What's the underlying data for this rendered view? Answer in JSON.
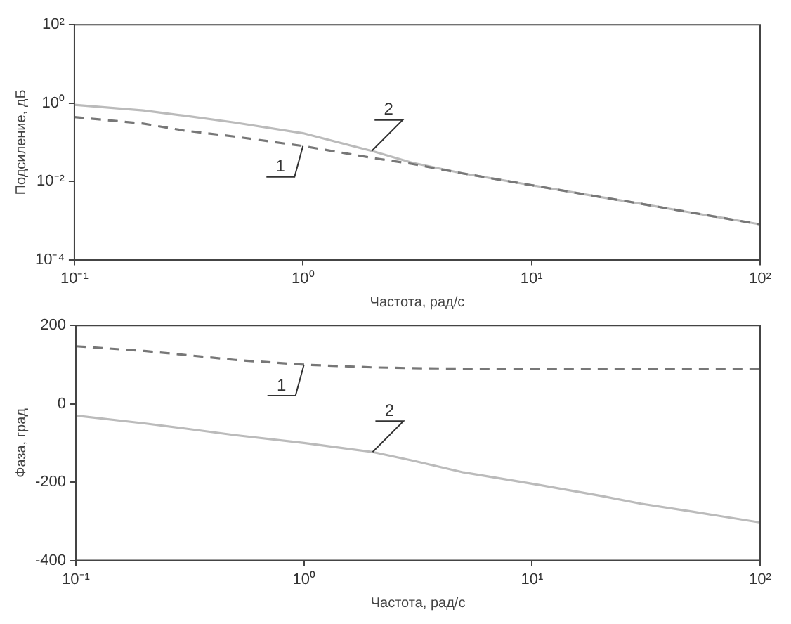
{
  "chart_data": [
    {
      "type": "line",
      "xlabel": "Частота, рад/с",
      "ylabel": "Подсиление, дБ",
      "log": "xy",
      "xlim": [
        0.1,
        100
      ],
      "ylim": [
        0.0001,
        100
      ],
      "xticks": [
        {
          "value": 0.1,
          "label": "10⁻¹"
        },
        {
          "value": 1,
          "label": "10⁰"
        },
        {
          "value": 10,
          "label": "10¹"
        },
        {
          "value": 100,
          "label": "10²"
        }
      ],
      "yticks": [
        {
          "value": 0.0001,
          "label": "10⁻⁴"
        },
        {
          "value": 0.01,
          "label": "10⁻²"
        },
        {
          "value": 1,
          "label": "10⁰"
        },
        {
          "value": 100,
          "label": "10²"
        }
      ],
      "grid": false,
      "legend": false,
      "marker": "none",
      "series": [
        {
          "name": "1",
          "color": "#777777",
          "line_style": "dashed",
          "x": [
            0.1,
            0.2,
            0.3,
            0.5,
            1,
            2,
            3,
            5,
            10,
            20,
            30,
            50,
            100
          ],
          "values": [
            0.44,
            0.3,
            0.2,
            0.14,
            0.08,
            0.04,
            0.028,
            0.016,
            0.008,
            0.004,
            0.0027,
            0.0016,
            0.0008
          ]
        },
        {
          "name": "2",
          "color": "#bbbbbb",
          "line_style": "solid",
          "x": [
            0.1,
            0.2,
            0.3,
            0.5,
            1,
            2,
            3,
            5,
            10,
            20,
            30,
            50,
            100
          ],
          "values": [
            0.9,
            0.65,
            0.48,
            0.32,
            0.17,
            0.06,
            0.03,
            0.016,
            0.008,
            0.004,
            0.0027,
            0.0016,
            0.0008
          ]
        }
      ]
    },
    {
      "type": "line",
      "xlabel": "Частота, рад/с",
      "ylabel": "Фаза, град",
      "log": "x",
      "xlim": [
        0.1,
        100
      ],
      "ylim": [
        -400,
        200
      ],
      "xticks": [
        {
          "value": 0.1,
          "label": "10⁻¹"
        },
        {
          "value": 1,
          "label": "10⁰"
        },
        {
          "value": 10,
          "label": "10¹"
        },
        {
          "value": 100,
          "label": "10²"
        }
      ],
      "yticks": [
        -400,
        -200,
        0,
        200
      ],
      "grid": false,
      "legend": false,
      "marker": "none",
      "series": [
        {
          "name": "1",
          "color": "#777777",
          "line_style": "dashed",
          "x": [
            0.1,
            0.2,
            0.3,
            0.5,
            1,
            2,
            3,
            5,
            10,
            30,
            100
          ],
          "values": [
            147,
            135,
            125,
            112,
            100,
            93,
            91,
            90,
            90,
            90,
            90
          ]
        },
        {
          "name": "2",
          "color": "#bbbbbb",
          "line_style": "solid",
          "x": [
            0.1,
            0.2,
            0.3,
            0.5,
            1,
            2,
            3,
            5,
            10,
            20,
            30,
            50,
            100
          ],
          "values": [
            -30,
            -50,
            -63,
            -80,
            -100,
            -123,
            -145,
            -175,
            -204,
            -235,
            -255,
            -275,
            -303
          ]
        }
      ]
    }
  ]
}
